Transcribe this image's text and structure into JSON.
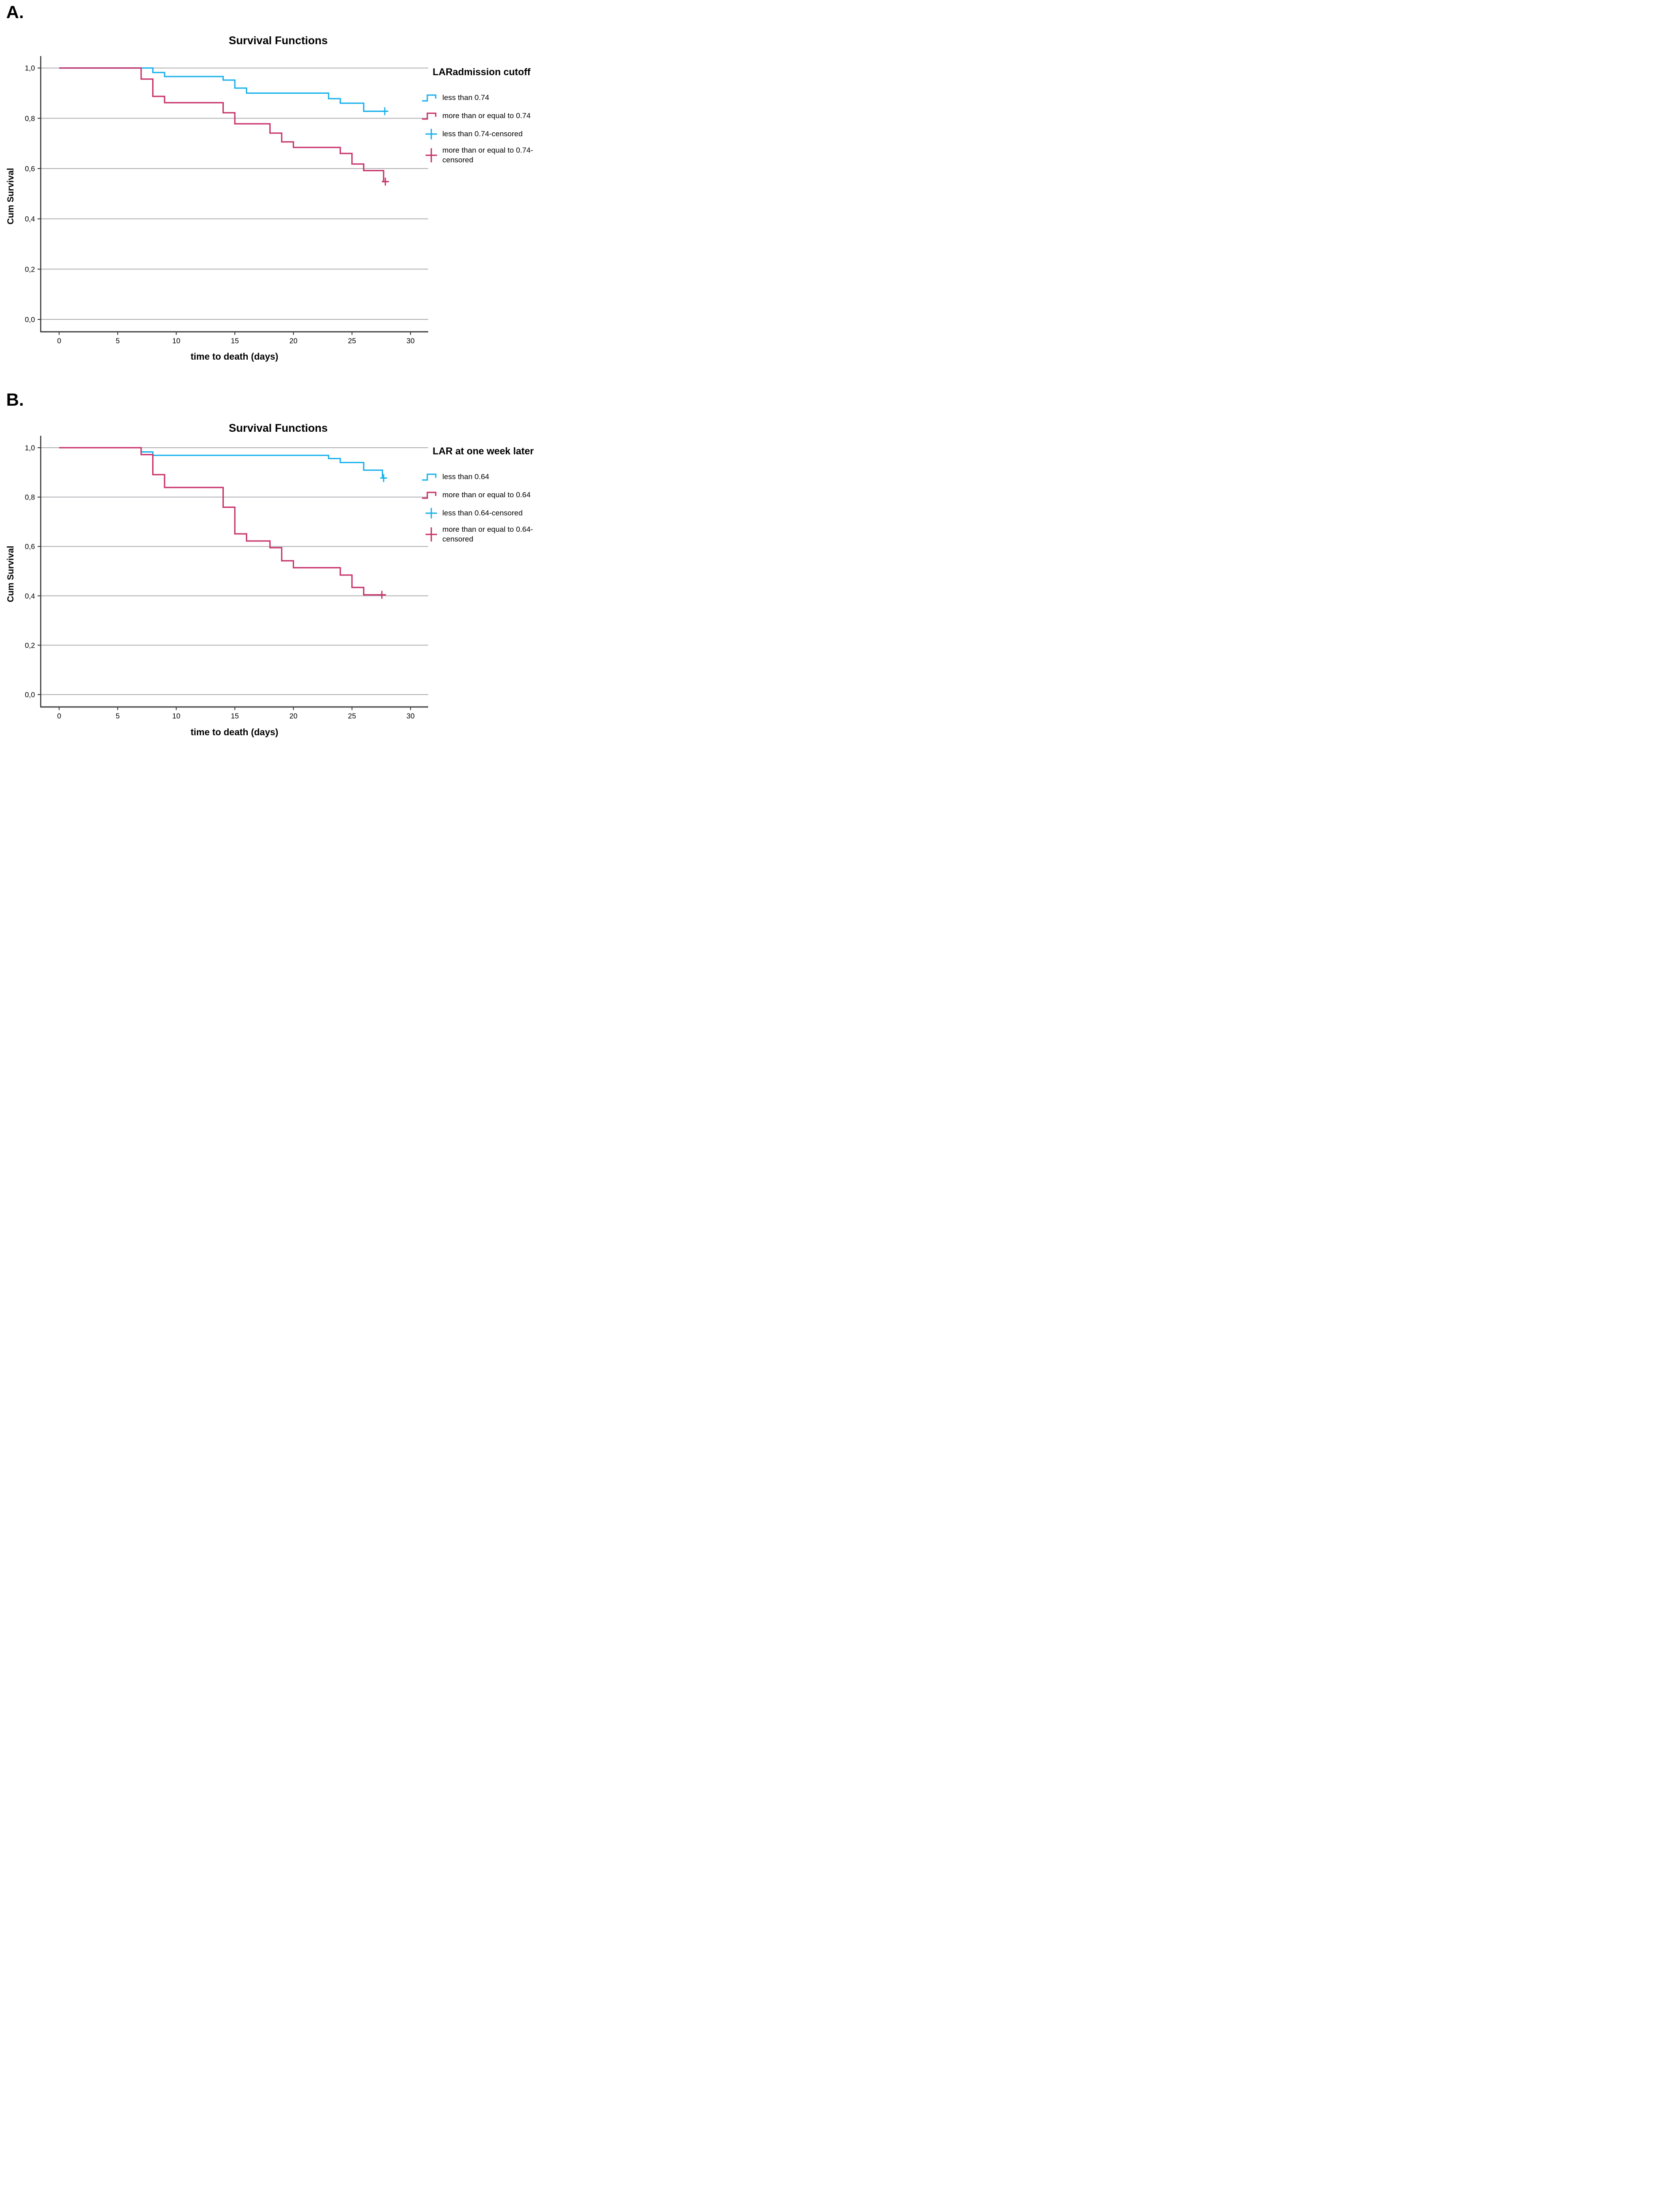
{
  "colors": {
    "blue": "#1CB2EC",
    "red": "#C8336B",
    "grid": "#B3B3B6",
    "axis": "#3A3A3A",
    "text": "#000000"
  },
  "chart_data": [
    {
      "type": "line",
      "subtype": "kaplan-meier-step",
      "panel_label": "A.",
      "title": "Survival Functions",
      "xlabel": "time to death (days)",
      "ylabel": "Cum Survival",
      "x_tick_labels": [
        "0",
        "5",
        "10",
        "15",
        "20",
        "25",
        "30"
      ],
      "x_tick_values": [
        0,
        5,
        10,
        15,
        20,
        25,
        30
      ],
      "y_tick_labels": [
        "1,0",
        "0,8",
        "0,6",
        "0,4",
        "0,2",
        "0,0"
      ],
      "y_tick_values": [
        1.0,
        0.8,
        0.6,
        0.4,
        0.2,
        0.0
      ],
      "xlim": [
        -1.5,
        31.5
      ],
      "ylim": [
        -0.05,
        1.045
      ],
      "grid": "horizontal",
      "legend_position": "right",
      "legend_title": "LARadmission cutoff",
      "legend_entries": [
        {
          "label": "less than 0.74",
          "symbol": "step",
          "color": "blue",
          "label_lines": [
            "less than 0.74"
          ]
        },
        {
          "label": "more than or equal to 0.74",
          "symbol": "step",
          "color": "red",
          "label_lines": [
            "more than or equal to 0.74"
          ]
        },
        {
          "label": "less than 0.74-censored",
          "symbol": "cross",
          "color": "blue",
          "label_lines": [
            "less than 0.74-censored"
          ]
        },
        {
          "label": "more than or equal to 0.74-censored",
          "symbol": "cross",
          "color": "red",
          "label_lines": [
            "more than or equal to 0.74-",
            "censored"
          ]
        }
      ],
      "series": [
        {
          "name": "less than 0.74",
          "color": "blue",
          "start": [
            0,
            1.0
          ],
          "steps": [
            [
              8,
              0.982
            ],
            [
              9,
              0.966
            ],
            [
              14,
              0.952
            ],
            [
              15,
              0.92
            ],
            [
              16,
              0.9
            ],
            [
              23,
              0.878
            ],
            [
              24,
              0.86
            ],
            [
              26,
              0.828
            ]
          ],
          "end_time": 28,
          "censored": [
            [
              27.8,
              0.828
            ]
          ]
        },
        {
          "name": "more than or equal to 0.74",
          "color": "red",
          "start": [
            0,
            1.0
          ],
          "steps": [
            [
              7,
              0.956
            ],
            [
              8,
              0.887
            ],
            [
              9,
              0.862
            ],
            [
              14,
              0.822
            ],
            [
              15,
              0.778
            ],
            [
              18,
              0.741
            ],
            [
              19,
              0.706
            ],
            [
              20,
              0.684
            ],
            [
              24,
              0.66
            ],
            [
              25,
              0.618
            ],
            [
              26,
              0.592
            ],
            [
              27.7,
              0.548
            ]
          ],
          "end_time": 28,
          "censored": [
            [
              27.85,
              0.548
            ]
          ]
        }
      ]
    },
    {
      "type": "line",
      "subtype": "kaplan-meier-step",
      "panel_label": "B.",
      "title": "Survival Functions",
      "xlabel": "time to death (days)",
      "ylabel": "Cum Survival",
      "x_tick_labels": [
        "0",
        "5",
        "10",
        "15",
        "20",
        "25",
        "30"
      ],
      "x_tick_values": [
        0,
        5,
        10,
        15,
        20,
        25,
        30
      ],
      "y_tick_labels": [
        "1,0",
        "0,8",
        "0,6",
        "0,4",
        "0,2",
        "0,0"
      ],
      "y_tick_values": [
        1.0,
        0.8,
        0.6,
        0.4,
        0.2,
        0.0
      ],
      "xlim": [
        -1.5,
        31.5
      ],
      "ylim": [
        -0.05,
        1.045
      ],
      "grid": "horizontal",
      "legend_position": "right",
      "legend_title": "LAR at one week later",
      "legend_entries": [
        {
          "label": "less than 0.64",
          "symbol": "step",
          "color": "blue",
          "label_lines": [
            "less than 0.64"
          ]
        },
        {
          "label": "more than or equal to 0.64",
          "symbol": "step",
          "color": "red",
          "label_lines": [
            "more than or equal to 0.64"
          ]
        },
        {
          "label": "less than 0.64-censored",
          "symbol": "cross",
          "color": "blue",
          "label_lines": [
            "less than 0.64-censored"
          ]
        },
        {
          "label": "more than or equal to 0.64-censored",
          "symbol": "cross",
          "color": "red",
          "label_lines": [
            "more than or equal to 0.64-",
            "censored"
          ]
        }
      ],
      "series": [
        {
          "name": "less than 0.64",
          "color": "blue",
          "start": [
            0,
            1.0
          ],
          "steps": [
            [
              7,
              0.983
            ],
            [
              8,
              0.969
            ],
            [
              23,
              0.956
            ],
            [
              24,
              0.94
            ],
            [
              26,
              0.909
            ],
            [
              27.6,
              0.877
            ]
          ],
          "end_time": 27.9,
          "censored": [
            [
              27.7,
              0.877
            ]
          ]
        },
        {
          "name": "more than or equal to 0.64",
          "color": "red",
          "start": [
            0,
            1.0
          ],
          "steps": [
            [
              7,
              0.972
            ],
            [
              8,
              0.891
            ],
            [
              9,
              0.839
            ],
            [
              14,
              0.759
            ],
            [
              15,
              0.651
            ],
            [
              16,
              0.622
            ],
            [
              18,
              0.595
            ],
            [
              19,
              0.542
            ],
            [
              20,
              0.514
            ],
            [
              24,
              0.484
            ],
            [
              25,
              0.434
            ],
            [
              26,
              0.404
            ]
          ],
          "end_time": 27.9,
          "censored": [
            [
              27.55,
              0.404
            ]
          ]
        }
      ]
    }
  ]
}
